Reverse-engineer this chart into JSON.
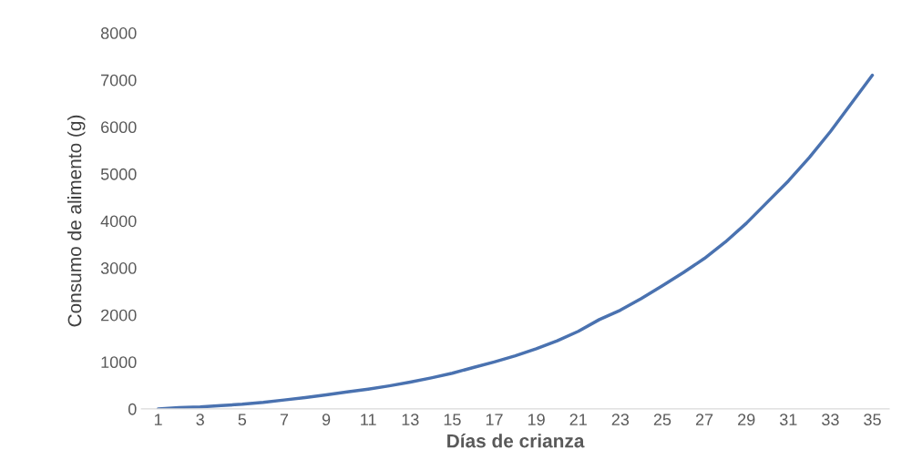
{
  "chart_data": {
    "type": "line",
    "xlabel": "Días de crianza",
    "ylabel": "Consumo de alimento (g)",
    "categories": [
      "1",
      null,
      "3",
      null,
      "5",
      null,
      "7",
      null,
      "9",
      null,
      "11",
      null,
      "13",
      null,
      "15",
      null,
      "17",
      null,
      "19",
      null,
      "21",
      null,
      "23",
      null,
      "25",
      null,
      "27",
      null,
      "29",
      null,
      "31",
      null,
      "33",
      null,
      "35"
    ],
    "series": [
      {
        "color": "#4a72b0",
        "values": [
          0,
          30,
          40,
          70,
          100,
          140,
          190,
          240,
          300,
          360,
          420,
          490,
          570,
          660,
          760,
          880,
          1000,
          1130,
          1280,
          1450,
          1650,
          1900,
          2100,
          2350,
          2620,
          2900,
          3200,
          3550,
          3950,
          4400,
          4850,
          5350,
          5900,
          6500,
          7100
        ]
      }
    ],
    "ylim": [
      0,
      8000
    ],
    "yticks": [
      0,
      1000,
      2000,
      3000,
      4000,
      5000,
      6000,
      7000,
      8000
    ],
    "grid": false,
    "marker": "none",
    "line_style": "solid"
  }
}
